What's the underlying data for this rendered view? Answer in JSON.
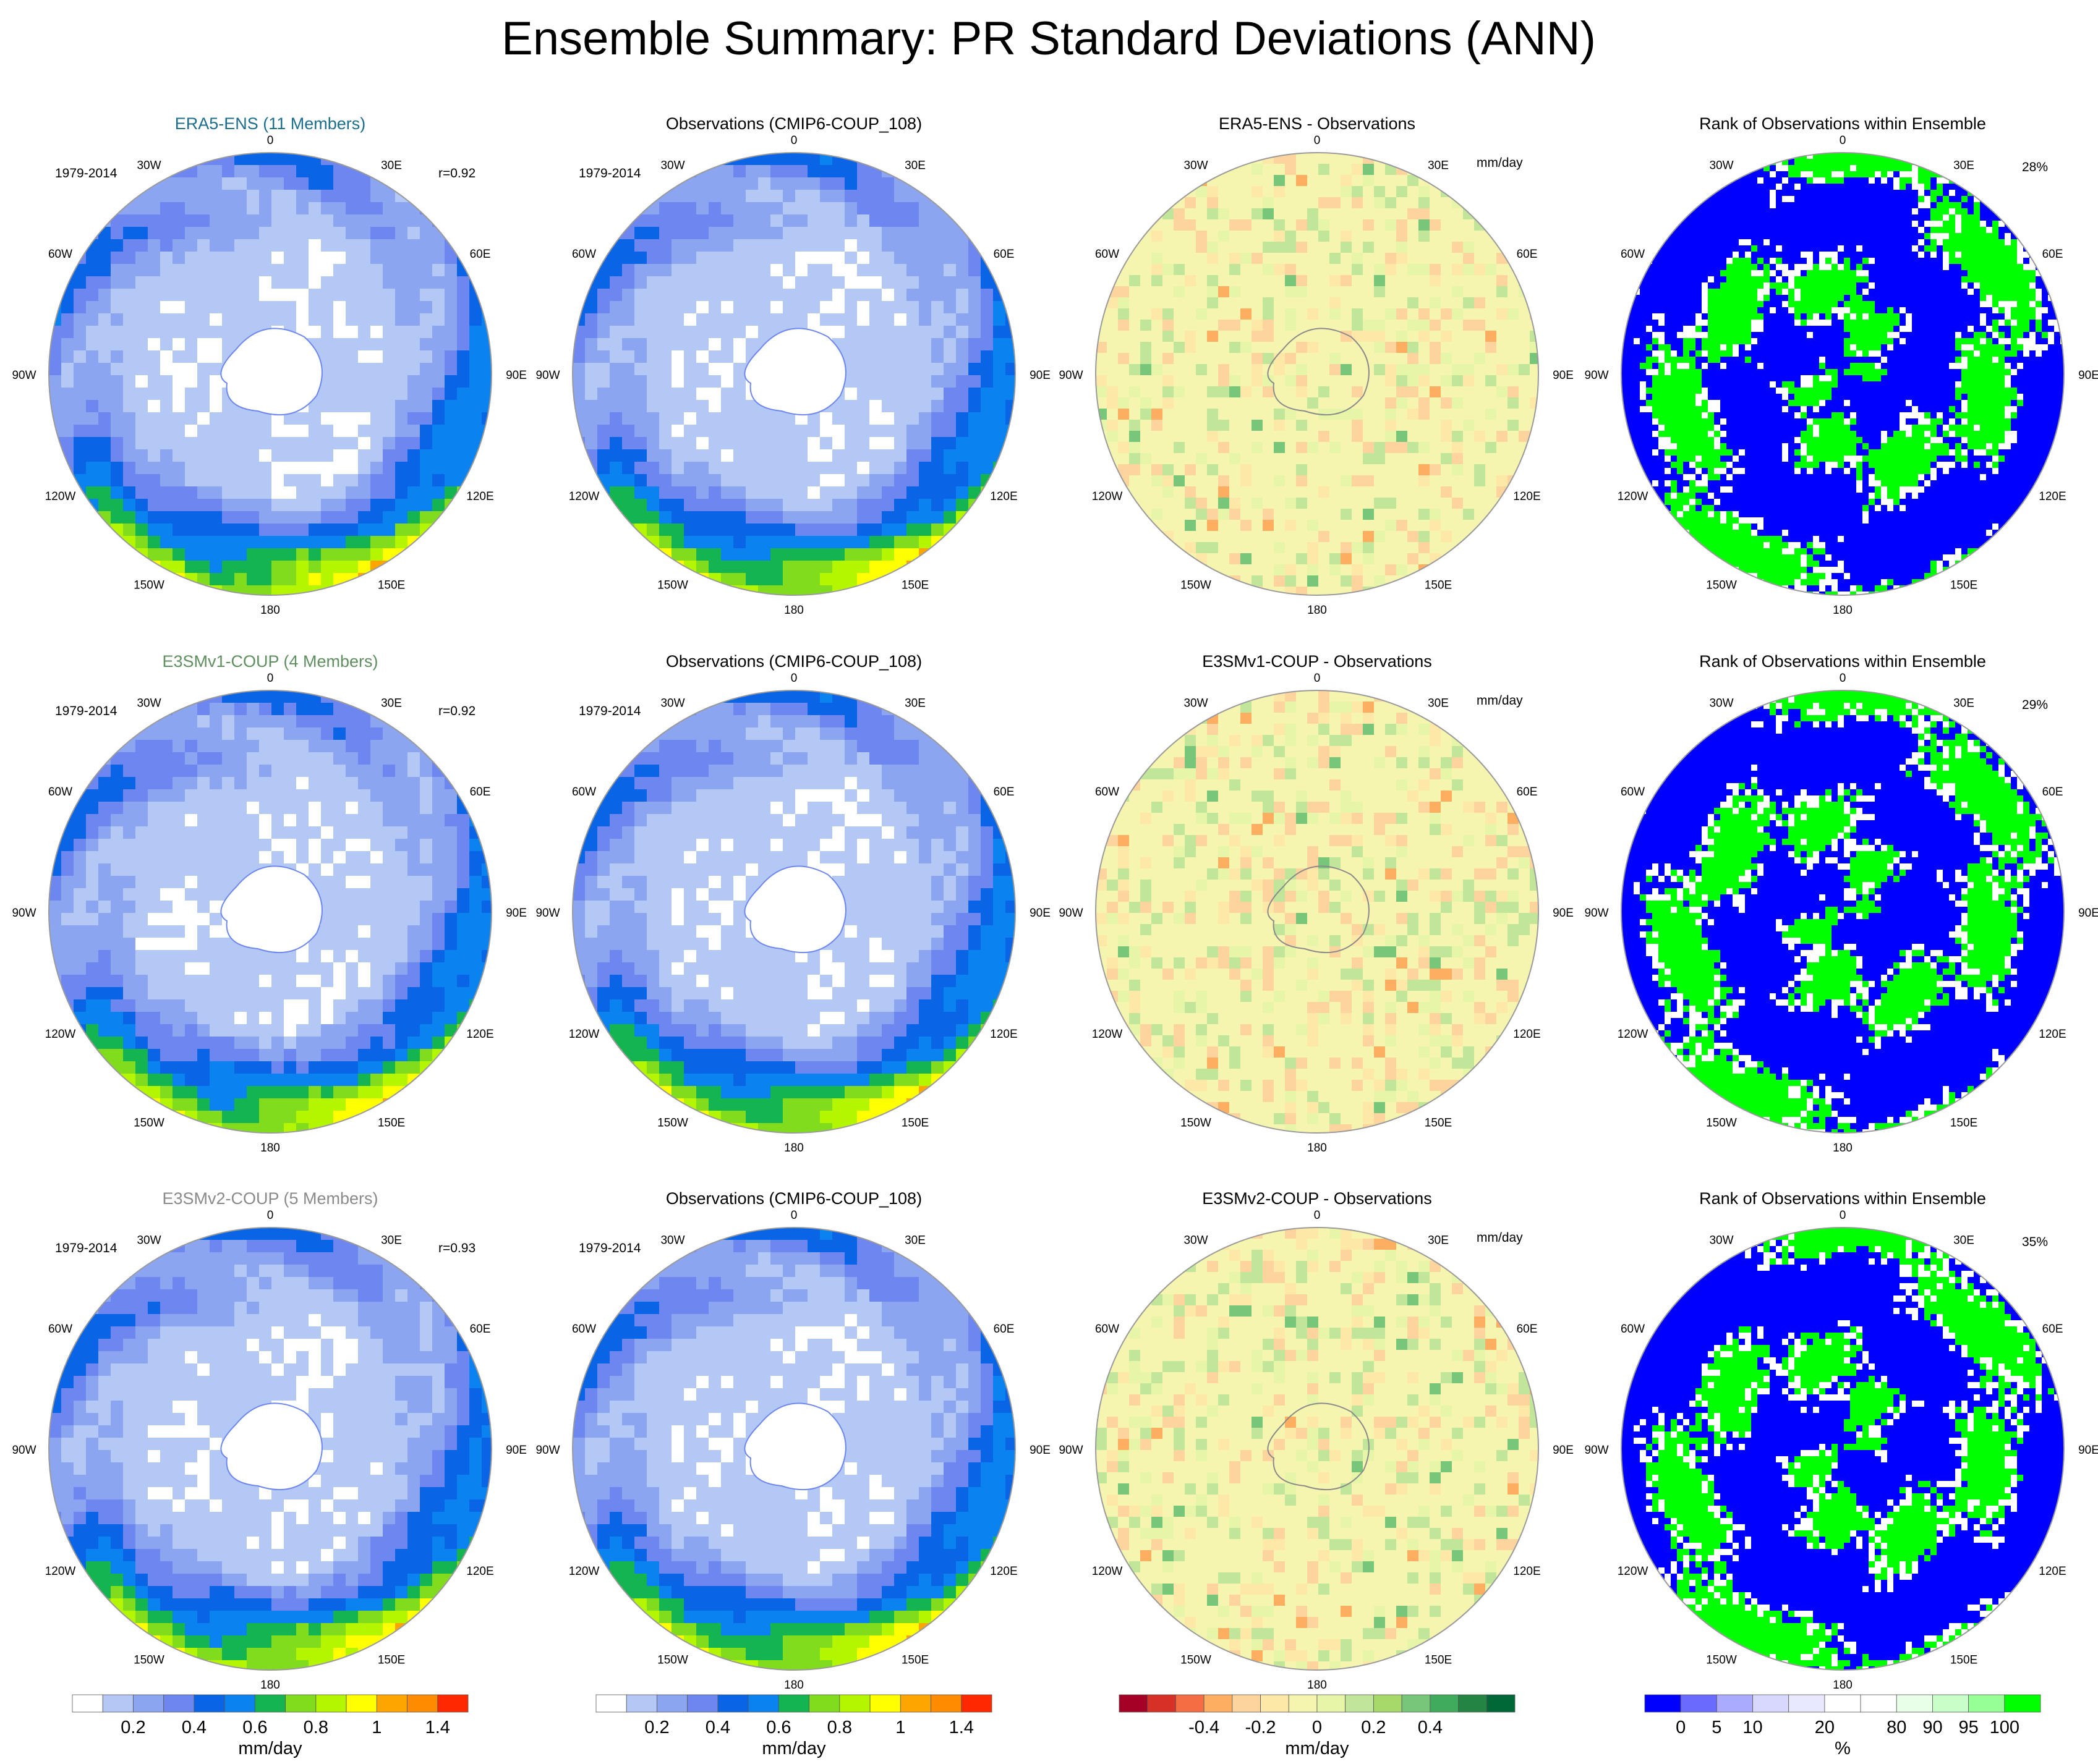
{
  "title": "Ensemble Summary: PR Standard Deviations (ANN)",
  "rows": [
    {
      "panels": [
        {
          "kind": "field",
          "title": "ERA5-ENS (11 Members)",
          "title_color": "#1b6e8c",
          "period": "1979-2014",
          "corr": "r=0.92",
          "pattern_seed": 11
        },
        {
          "kind": "field",
          "title": "Observations (CMIP6-COUP_108)",
          "title_color": "#000000",
          "period": "1979-2014",
          "corr": "",
          "pattern_seed": 23
        },
        {
          "kind": "diff",
          "title": "ERA5-ENS - Observations",
          "title_color": "#000000",
          "units": "mm/day",
          "pattern_seed": 37
        },
        {
          "kind": "rank",
          "title": "Rank of Observations within Ensemble",
          "title_color": "#000000",
          "percent": "28%",
          "pattern_seed": 41
        }
      ]
    },
    {
      "panels": [
        {
          "kind": "field",
          "title": "E3SMv1-COUP (4 Members)",
          "title_color": "#5f8f5f",
          "period": "1979-2014",
          "corr": "r=0.92",
          "pattern_seed": 53
        },
        {
          "kind": "field",
          "title": "Observations (CMIP6-COUP_108)",
          "title_color": "#000000",
          "period": "1979-2014",
          "corr": "",
          "pattern_seed": 23
        },
        {
          "kind": "diff",
          "title": "E3SMv1-COUP - Observations",
          "title_color": "#000000",
          "units": "mm/day",
          "pattern_seed": 67
        },
        {
          "kind": "rank",
          "title": "Rank of Observations within Ensemble",
          "title_color": "#000000",
          "percent": "29%",
          "pattern_seed": 71
        }
      ]
    },
    {
      "panels": [
        {
          "kind": "field",
          "title": "E3SMv2-COUP (5 Members)",
          "title_color": "#8a8a8a",
          "period": "1979-2014",
          "corr": "r=0.93",
          "pattern_seed": 83
        },
        {
          "kind": "field",
          "title": "Observations (CMIP6-COUP_108)",
          "title_color": "#000000",
          "period": "1979-2014",
          "corr": "",
          "pattern_seed": 23
        },
        {
          "kind": "diff",
          "title": "E3SMv2-COUP - Observations",
          "title_color": "#000000",
          "units": "mm/day",
          "pattern_seed": 97
        },
        {
          "kind": "rank",
          "title": "Rank of Observations within Ensemble",
          "title_color": "#000000",
          "percent": "35%",
          "pattern_seed": 101
        }
      ]
    }
  ],
  "lon_labels": [
    "0",
    "30E",
    "60E",
    "90E",
    "120E",
    "150E",
    "180",
    "150W",
    "120W",
    "90W",
    "60W",
    "30W"
  ],
  "colorbars": [
    {
      "kind": "field",
      "colors": [
        "#ffffff",
        "#b4c8f5",
        "#8ca5f0",
        "#6e87f0",
        "#0a64e6",
        "#0a82f0",
        "#14b450",
        "#82dc1e",
        "#b4f500",
        "#ffff00",
        "#ffa500",
        "#ff8c00",
        "#ff2800"
      ],
      "ticks": [
        "0.2",
        "0.4",
        "0.6",
        "0.8",
        "1",
        "1.4"
      ],
      "tick_after_box": [
        1,
        3,
        5,
        7,
        9,
        11
      ],
      "label": "mm/day"
    },
    {
      "kind": "field",
      "colors": [
        "#ffffff",
        "#b4c8f5",
        "#8ca5f0",
        "#6e87f0",
        "#0a64e6",
        "#0a82f0",
        "#14b450",
        "#82dc1e",
        "#b4f500",
        "#ffff00",
        "#ffa500",
        "#ff8c00",
        "#ff2800"
      ],
      "ticks": [
        "0.2",
        "0.4",
        "0.6",
        "0.8",
        "1",
        "1.4"
      ],
      "tick_after_box": [
        1,
        3,
        5,
        7,
        9,
        11
      ],
      "label": "mm/day"
    },
    {
      "kind": "diff",
      "colors": [
        "#a50026",
        "#d73027",
        "#f46d43",
        "#fdae61",
        "#fdd49e",
        "#fee8a8",
        "#f5f5b0",
        "#e6f5a8",
        "#c2e699",
        "#a6d96a",
        "#78c679",
        "#41ab5d",
        "#238443",
        "#006837"
      ],
      "ticks": [
        "-0.4",
        "-0.2",
        "0",
        "0.2",
        "0.4"
      ],
      "tick_after_box": [
        2,
        4,
        6,
        8,
        10
      ],
      "label": "mm/day"
    },
    {
      "kind": "rank",
      "colors": [
        "#0000ff",
        "#6a6aff",
        "#aaaaff",
        "#d8d8ff",
        "#e8e8ff",
        "#ffffff",
        "#ffffff",
        "#e8ffe8",
        "#c8ffc8",
        "#96ff96",
        "#00ff00"
      ],
      "ticks": [
        "0",
        "5",
        "10",
        "20",
        "80",
        "90",
        "95",
        "100"
      ],
      "tick_after_box": [
        0,
        1,
        2,
        4,
        6,
        7,
        8,
        9
      ],
      "label": "%"
    }
  ]
}
